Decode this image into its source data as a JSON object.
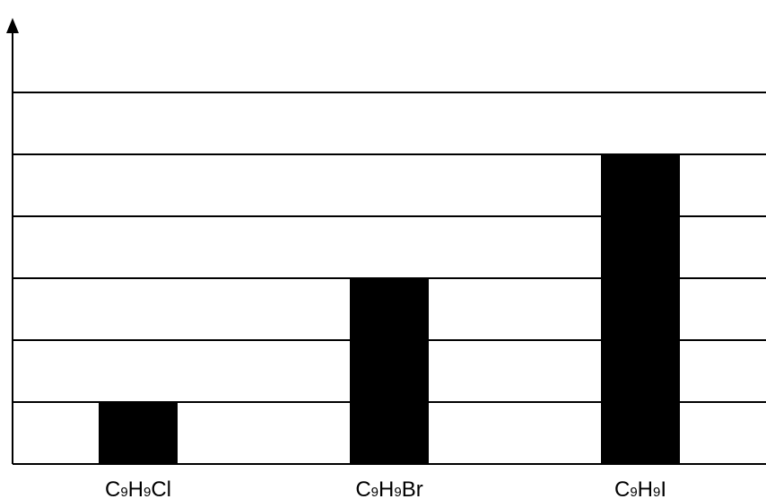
{
  "chart_data": {
    "type": "bar",
    "title": "",
    "xlabel": "",
    "ylabel": "",
    "grid": true,
    "legend": "none",
    "ylim": [
      0,
      6
    ],
    "categories": [
      {
        "label": "C9H9Cl",
        "parts": [
          [
            "C",
            false
          ],
          [
            "9",
            true
          ],
          [
            "H",
            false
          ],
          [
            "9",
            true
          ],
          [
            "Cl",
            false
          ]
        ]
      },
      {
        "label": "C9H9Br",
        "parts": [
          [
            "C",
            false
          ],
          [
            "9",
            true
          ],
          [
            "H",
            false
          ],
          [
            "9",
            true
          ],
          [
            "Br",
            false
          ]
        ]
      },
      {
        "label": "C9H9I",
        "parts": [
          [
            "C",
            false
          ],
          [
            "9",
            true
          ],
          [
            "H",
            false
          ],
          [
            "9",
            true
          ],
          [
            "I",
            false
          ]
        ]
      }
    ],
    "values": [
      1,
      3,
      5
    ],
    "colors": {
      "bar": "#000000",
      "grid": "#000000",
      "axis": "#000000"
    }
  }
}
